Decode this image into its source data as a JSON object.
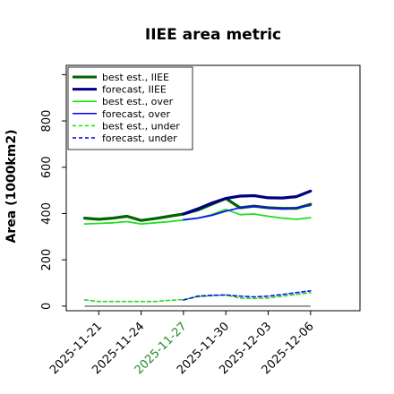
{
  "chart_data": {
    "type": "line",
    "title": "IIEE area metric",
    "xlabel": "",
    "ylabel": "Area (1000km2)",
    "ylim": [
      -20,
      1040
    ],
    "xlim": [
      -1.3,
      19.5
    ],
    "yticks": [
      0,
      200,
      400,
      600,
      800
    ],
    "xtick_positions": [
      1,
      4,
      7,
      10,
      13,
      16
    ],
    "xtick_labels": [
      "2025-11-21",
      "2025-11-24",
      "2025-11-27",
      "2025-11-30",
      "2025-12-03",
      "2025-12-06"
    ],
    "xtick_colors": [
      "#000000",
      "#000000",
      "#228b22",
      "#000000",
      "#000000",
      "#000000"
    ],
    "grid": false,
    "legend_position": "upper-left",
    "legend": [
      {
        "label": "best est., IIEE",
        "color": "#006400",
        "style": "solid",
        "width": 3
      },
      {
        "label": "forecast, IIEE",
        "color": "#000080",
        "style": "solid",
        "width": 3
      },
      {
        "label": "best est., over",
        "color": "#00ee00",
        "style": "solid",
        "width": 1.5
      },
      {
        "label": "forecast, over",
        "color": "#0000ee",
        "style": "solid",
        "width": 1.5
      },
      {
        "label": "best est., under",
        "color": "#00ee00",
        "style": "dashed",
        "width": 1.5
      },
      {
        "label": "forecast, under",
        "color": "#0000ee",
        "style": "dashed",
        "width": 1.5
      }
    ],
    "series": [
      {
        "name": "best est., over",
        "color": "#22dd22",
        "width": 1.8,
        "dash": "",
        "x": [
          0,
          1,
          2,
          3,
          4,
          5,
          6,
          7,
          8,
          9,
          10,
          11,
          12,
          13,
          14,
          15,
          16
        ],
        "y": [
          355,
          357,
          360,
          365,
          355,
          360,
          365,
          372,
          380,
          395,
          418,
          395,
          398,
          388,
          380,
          375,
          382
        ]
      },
      {
        "name": "best est., IIEE",
        "color": "#006400",
        "width": 3.2,
        "dash": "",
        "x": [
          0,
          1,
          2,
          3,
          4,
          5,
          6,
          7,
          8,
          9,
          10,
          11,
          12,
          13,
          14,
          15,
          16
        ],
        "y": [
          380,
          375,
          380,
          388,
          370,
          378,
          388,
          398,
          415,
          440,
          465,
          425,
          432,
          425,
          422,
          422,
          440
        ]
      },
      {
        "name": "forecast, over",
        "color": "#1111ee",
        "width": 1.8,
        "dash": "",
        "x": [
          7,
          8,
          9,
          10,
          11,
          12,
          13,
          14,
          15,
          16
        ],
        "y": [
          373,
          380,
          392,
          410,
          425,
          432,
          425,
          420,
          425,
          435
        ]
      },
      {
        "name": "forecast, IIEE",
        "color": "#000080",
        "width": 3.2,
        "dash": "",
        "x": [
          7,
          8,
          9,
          10,
          11,
          12,
          13,
          14,
          15,
          16
        ],
        "y": [
          398,
          420,
          445,
          465,
          475,
          477,
          468,
          467,
          473,
          497
        ]
      },
      {
        "name": "best est., under",
        "color": "#22dd22",
        "width": 1.6,
        "dash": "4,3",
        "x": [
          0,
          1,
          2,
          3,
          4,
          5,
          6,
          7,
          8,
          9,
          10,
          11,
          12,
          13,
          14,
          15,
          16
        ],
        "y": [
          27,
          20,
          20,
          20,
          20,
          20,
          25,
          28,
          40,
          45,
          48,
          35,
          33,
          35,
          43,
          50,
          58
        ]
      },
      {
        "name": "forecast, under",
        "color": "#1111ee",
        "width": 1.6,
        "dash": "4,3",
        "x": [
          7,
          8,
          9,
          10,
          11,
          12,
          13,
          14,
          15,
          16
        ],
        "y": [
          26,
          43,
          47,
          48,
          43,
          40,
          43,
          50,
          58,
          66
        ]
      }
    ],
    "baseline": {
      "y": 0,
      "color": "#777777"
    }
  }
}
